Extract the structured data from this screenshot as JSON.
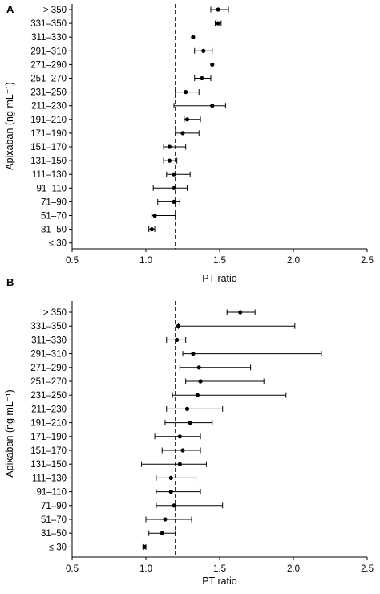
{
  "chart_data": [
    {
      "type": "scatter",
      "panel": "A",
      "xlabel": "PT ratio",
      "ylabel": "Apixaban (ng mL⁻¹)",
      "xlim": [
        0.5,
        2.5
      ],
      "xticks": [
        "0.5",
        "1.0",
        "1.5",
        "2.0",
        "2.5"
      ],
      "reference_x": 1.2,
      "categories": [
        "> 350",
        "331–350",
        "311–330",
        "291–310",
        "271–290",
        "251–270",
        "231–250",
        "211–230",
        "191–210",
        "171–190",
        "151–170",
        "131–150",
        "111–130",
        "91–110",
        "71–90",
        "51–70",
        "31–50",
        "≤ 30"
      ],
      "values": [
        1.49,
        1.49,
        1.32,
        1.39,
        1.45,
        1.38,
        1.27,
        1.45,
        1.28,
        1.25,
        1.16,
        1.16,
        1.19,
        1.19,
        1.19,
        1.06,
        1.04,
        null
      ],
      "lower": [
        1.44,
        1.47,
        1.32,
        1.33,
        1.45,
        1.33,
        1.2,
        1.19,
        1.26,
        1.2,
        1.12,
        1.12,
        1.14,
        1.05,
        1.08,
        1.04,
        1.02,
        null
      ],
      "upper": [
        1.56,
        1.51,
        1.32,
        1.45,
        1.45,
        1.44,
        1.36,
        1.54,
        1.37,
        1.36,
        1.27,
        1.21,
        1.3,
        1.28,
        1.23,
        1.2,
        1.06,
        null
      ]
    },
    {
      "type": "scatter",
      "panel": "B",
      "xlabel": "PT ratio",
      "ylabel": "Apixaban (ng mL⁻¹)",
      "xlim": [
        0.5,
        2.5
      ],
      "xticks": [
        "0.5",
        "1.0",
        "1.5",
        "2.0",
        "2.5"
      ],
      "reference_x": 1.2,
      "categories": [
        "> 350",
        "331–350",
        "311–330",
        "291–310",
        "271–290",
        "251–270",
        "231–250",
        "211–230",
        "191–210",
        "171–190",
        "151–170",
        "131–150",
        "111–130",
        "91–110",
        "71–90",
        "51–70",
        "31–50",
        "≤ 30"
      ],
      "values": [
        1.64,
        1.22,
        1.21,
        1.32,
        1.36,
        1.37,
        1.35,
        1.28,
        1.3,
        1.23,
        1.25,
        1.23,
        1.17,
        1.17,
        1.19,
        1.13,
        1.11,
        0.99
      ],
      "lower": [
        1.55,
        1.22,
        1.14,
        1.25,
        1.23,
        1.27,
        1.18,
        1.14,
        1.13,
        1.06,
        1.11,
        0.97,
        1.07,
        1.07,
        1.07,
        1.0,
        1.02,
        0.98
      ],
      "upper": [
        1.74,
        2.01,
        1.27,
        2.19,
        1.71,
        1.8,
        1.95,
        1.52,
        1.45,
        1.37,
        1.37,
        1.41,
        1.34,
        1.37,
        1.52,
        1.31,
        1.2,
        1.0
      ]
    }
  ]
}
